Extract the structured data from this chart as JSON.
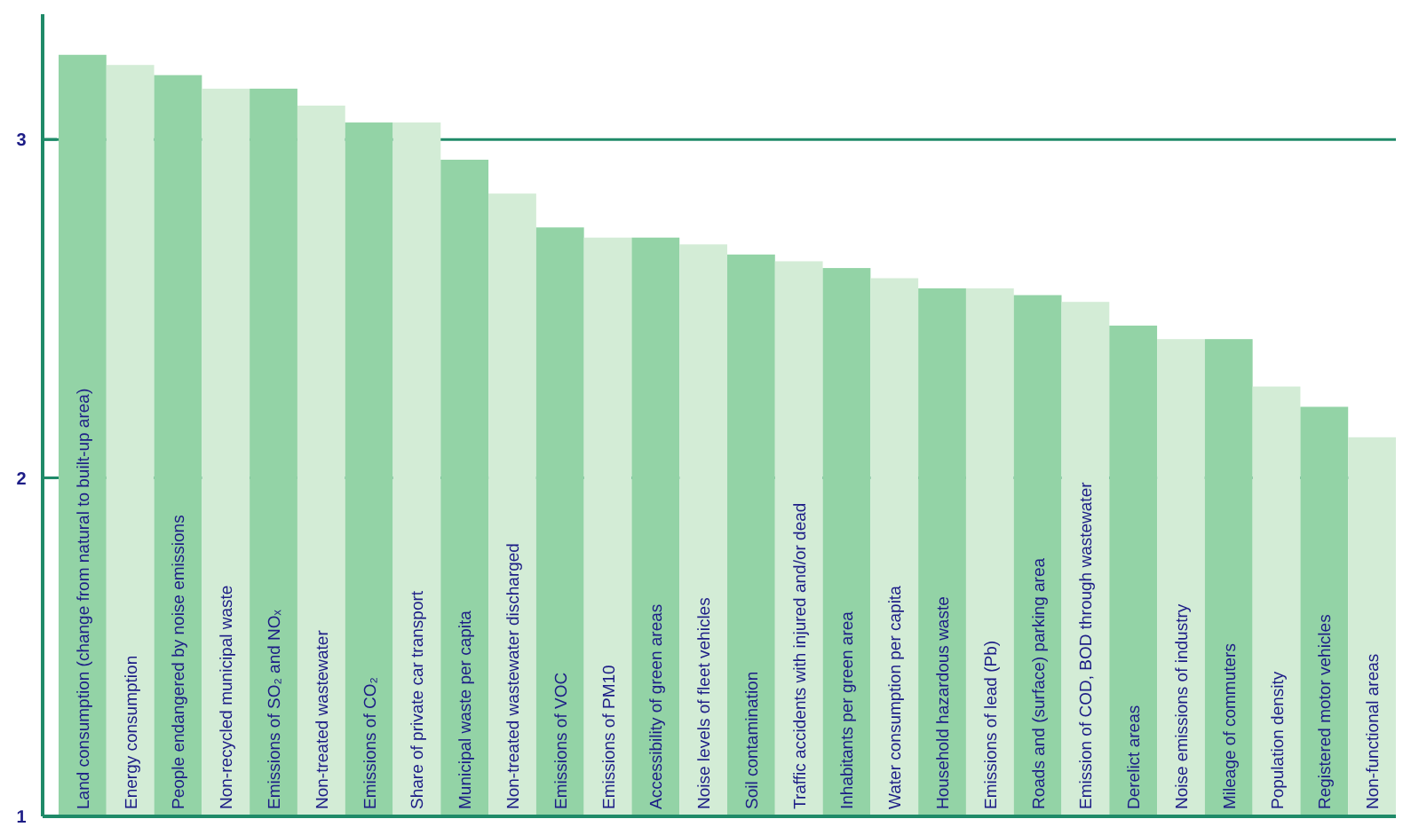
{
  "chart_data": {
    "type": "bar",
    "categories": [
      "Land consumption (change from natural to built-up area)",
      "Energy consumption",
      "People endangered by noise emissions",
      "Non-recycled municipal waste",
      "Emissions of SO₂ and NOₓ",
      "Non-treated wastewater",
      "Emissions of CO₂",
      "Share of private car transport",
      "Municipal waste per capita",
      "Non-treated wastewater discharged",
      "Emissions of VOC",
      "Emissions of PM10",
      "Accessibility of green areas",
      "Noise levels of fleet vehicles",
      "Soil contamination",
      "Traffic accidents with injured and/or dead",
      "Inhabitants per green area",
      "Water consumption per capita",
      "Household hazardous waste",
      "Emissions of lead (Pb)",
      "Roads and (surface) parking area",
      "Emission of COD, BOD through wastewater",
      "Derelict areas",
      "Noise emissions of industry",
      "Mileage of commuters",
      "Population density",
      "Registered motor vehicles",
      "Non-functional areas"
    ],
    "values": [
      3.25,
      3.22,
      3.19,
      3.15,
      3.15,
      3.1,
      3.05,
      3.05,
      2.94,
      2.84,
      2.74,
      2.71,
      2.71,
      2.69,
      2.66,
      2.64,
      2.62,
      2.59,
      2.56,
      2.56,
      2.54,
      2.52,
      2.45,
      2.41,
      2.41,
      2.27,
      2.21,
      2.12
    ],
    "colors": [
      "#93d3a6",
      "#d3ecd6",
      "#93d3a6",
      "#d3ecd6",
      "#93d3a6",
      "#d3ecd6",
      "#93d3a6",
      "#d3ecd6",
      "#93d3a6",
      "#d3ecd6",
      "#93d3a6",
      "#d3ecd6",
      "#93d3a6",
      "#d3ecd6",
      "#93d3a6",
      "#d3ecd6",
      "#93d3a6",
      "#d3ecd6",
      "#93d3a6",
      "#d3ecd6",
      "#93d3a6",
      "#d3ecd6",
      "#93d3a6",
      "#d3ecd6",
      "#93d3a6",
      "#d3ecd6",
      "#93d3a6",
      "#d3ecd6"
    ],
    "ylim": [
      1,
      3.37
    ],
    "yticks": [
      1,
      2,
      3
    ],
    "grid": "y"
  }
}
